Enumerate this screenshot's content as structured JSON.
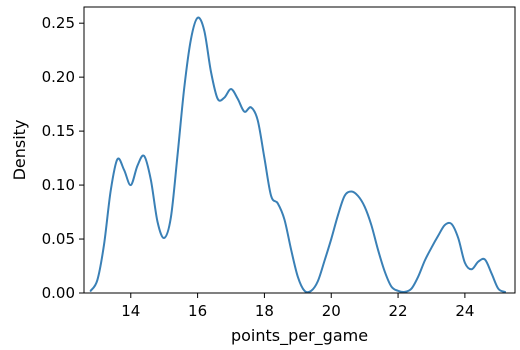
{
  "chart_data": {
    "type": "line",
    "title": "",
    "xlabel": "points_per_game",
    "ylabel": "Density",
    "xlim": [
      12.6,
      25.5
    ],
    "ylim": [
      0.0,
      0.265
    ],
    "xticks": [
      14,
      16,
      18,
      20,
      22,
      24
    ],
    "xtick_labels": [
      "14",
      "16",
      "18",
      "20",
      "22",
      "24"
    ],
    "yticks": [
      0.0,
      0.05,
      0.1,
      0.15,
      0.2,
      0.25
    ],
    "ytick_labels": [
      "0.00",
      "0.05",
      "0.10",
      "0.15",
      "0.20",
      "0.25"
    ],
    "grid": false,
    "legend": "none",
    "line_color": "#3a80b6",
    "series": [
      {
        "x": [
          12.8,
          13.0,
          13.2,
          13.4,
          13.6,
          13.8,
          14.0,
          14.2,
          14.4,
          14.6,
          14.8,
          15.0,
          15.2,
          15.4,
          15.6,
          15.8,
          16.0,
          16.2,
          16.4,
          16.6,
          16.8,
          17.0,
          17.2,
          17.4,
          17.6,
          17.8,
          18.0,
          18.2,
          18.4,
          18.6,
          18.8,
          19.0,
          19.2,
          19.4,
          19.6,
          19.8,
          20.0,
          20.2,
          20.4,
          20.6,
          20.8,
          21.0,
          21.2,
          21.4,
          21.6,
          21.8,
          22.0,
          22.2,
          22.4,
          22.6,
          22.8,
          23.0,
          23.2,
          23.4,
          23.6,
          23.8,
          24.0,
          24.2,
          24.4,
          24.6,
          24.8,
          25.0,
          25.2
        ],
        "y": [
          0.002,
          0.012,
          0.045,
          0.095,
          0.124,
          0.114,
          0.1,
          0.118,
          0.127,
          0.105,
          0.066,
          0.051,
          0.07,
          0.128,
          0.19,
          0.235,
          0.255,
          0.243,
          0.205,
          0.18,
          0.181,
          0.189,
          0.18,
          0.168,
          0.172,
          0.16,
          0.125,
          0.09,
          0.083,
          0.068,
          0.04,
          0.015,
          0.002,
          0.002,
          0.011,
          0.03,
          0.05,
          0.072,
          0.09,
          0.094,
          0.09,
          0.08,
          0.063,
          0.04,
          0.02,
          0.006,
          0.002,
          0.001,
          0.004,
          0.015,
          0.03,
          0.042,
          0.053,
          0.063,
          0.064,
          0.051,
          0.028,
          0.022,
          0.029,
          0.031,
          0.018,
          0.004,
          0.001
        ]
      }
    ]
  }
}
